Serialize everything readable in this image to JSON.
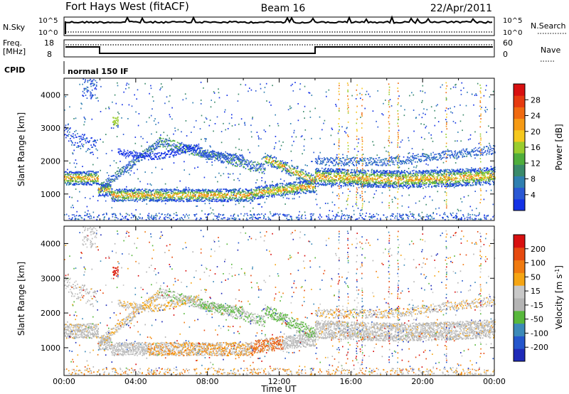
{
  "header": {
    "station": "Fort Hays West (fitACF)",
    "beam": "Beam 16",
    "date": "22/Apr/2011"
  },
  "colors": {
    "power_scale": [
      "#1432e6",
      "#2a58d4",
      "#2f7fb0",
      "#3a8a6a",
      "#4fae3c",
      "#9acd2e",
      "#f5c81e",
      "#f59a14",
      "#f06a10",
      "#e63a10",
      "#d81010"
    ],
    "velocity_scale": [
      "#1e2ab8",
      "#2456cc",
      "#3c8ab8",
      "#58b83c",
      "#b4b4b4",
      "#c8c8c8",
      "#f5a514",
      "#f07a10",
      "#e64a10",
      "#d81010"
    ]
  },
  "panels": {
    "nsky": {
      "left_label": "N.Sky",
      "right_label": "N.Search",
      "left_ticks": [
        "10^5",
        "10^0"
      ],
      "right_ticks": [
        "10^5",
        "10^0"
      ]
    },
    "freq": {
      "left_label_1": "Freq.",
      "left_label_2": "[MHz]",
      "right_label": "Nave",
      "left_ticks": [
        "18",
        "8"
      ],
      "right_ticks": [
        "60",
        "0"
      ]
    },
    "cpid": {
      "label": "CPID",
      "value": "normal 150 IF"
    }
  },
  "chart_data": [
    {
      "type": "heatmap",
      "title": "",
      "xlabel": "",
      "ylabel": "Slant Range [km]",
      "xlim": [
        0,
        24
      ],
      "ylim": [
        200,
        4500
      ],
      "yticks": [
        1000,
        2000,
        3000,
        4000
      ],
      "colorbar": {
        "label": "Power [dB]",
        "range": [
          0,
          32
        ],
        "ticks": [
          "4",
          "8",
          "12",
          "16",
          "20",
          "24",
          "28"
        ]
      }
    },
    {
      "type": "heatmap",
      "title": "",
      "xlabel": "Time UT",
      "ylabel": "Slant Range [km]",
      "xlim": [
        0,
        24
      ],
      "ylim": [
        200,
        4500
      ],
      "xticks": [
        "00:00",
        "04:00",
        "08:00",
        "12:00",
        "16:00",
        "20:00",
        "00:00"
      ],
      "yticks": [
        1000,
        2000,
        3000,
        4000
      ],
      "colorbar": {
        "label": "Velocity [m s^-1]",
        "range": [
          -250,
          250
        ],
        "ticks": [
          "200",
          "100",
          "50",
          "15",
          "-15",
          "-50",
          "-100",
          "-200"
        ]
      }
    }
  ]
}
